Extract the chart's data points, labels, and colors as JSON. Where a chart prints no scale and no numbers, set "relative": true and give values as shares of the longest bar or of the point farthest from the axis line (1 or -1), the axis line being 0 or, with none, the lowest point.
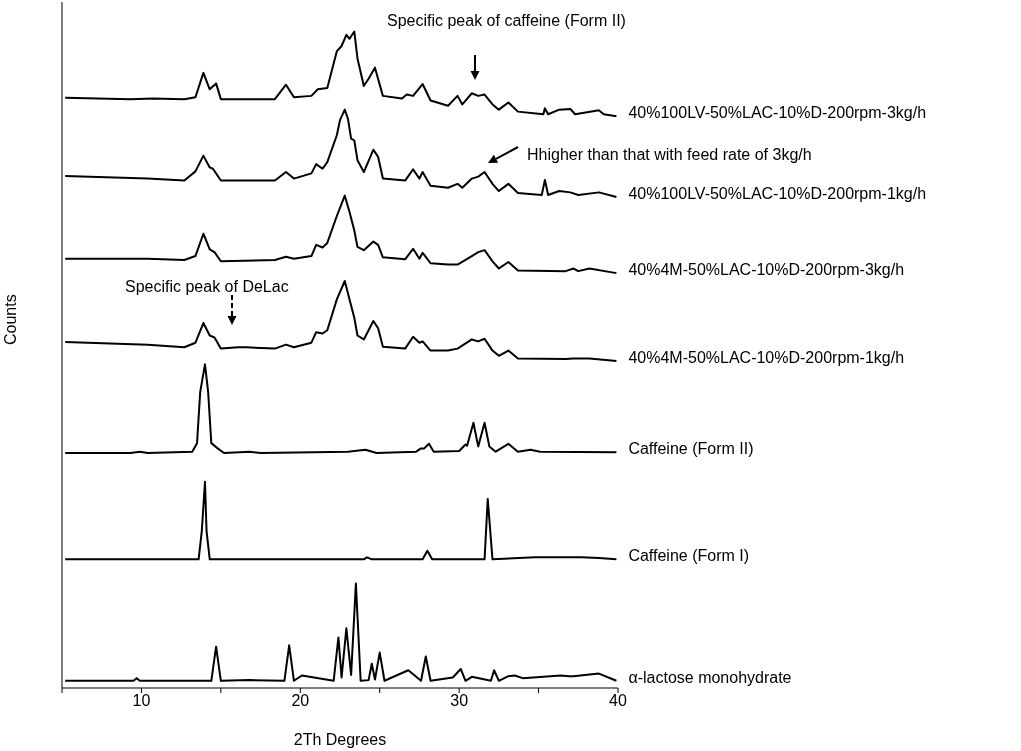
{
  "chart_data": {
    "type": "line",
    "relative": true,
    "xlabel": "2Th Degrees",
    "ylabel": "Counts",
    "xlim": [
      5,
      40
    ],
    "xticks": [
      {
        "value": 5,
        "label": null
      },
      10,
      {
        "value": 15,
        "label": null
      },
      20,
      {
        "value": 25,
        "label": null
      },
      30,
      {
        "value": 35,
        "label": null
      },
      40
    ],
    "annotations": [
      "Specific peak of caffeine (Form II)",
      "Hhigher than that with feed rate of 3kg/h",
      "Specific peak of DeLac"
    ],
    "series": [
      {
        "name": "40%100LV-50%LAC-10%D-200rpm-3kg/h",
        "color": "#000000",
        "x": [
          5.2,
          9.3,
          10.7,
          12.7,
          13.4,
          13.9,
          14.3,
          14.7,
          15.0,
          18.4,
          19.1,
          19.6,
          20.7,
          21.1,
          21.7,
          22.3,
          22.6,
          22.9,
          23.1,
          23.4,
          23.6,
          24.0,
          24.3,
          24.7,
          25.2,
          26.4,
          26.7,
          27.1,
          27.7,
          28.2,
          29.3,
          29.9,
          30.2,
          30.8,
          31.2,
          31.6,
          32.1,
          32.5,
          33.1,
          33.7,
          35.3,
          35.4,
          35.6,
          36.3,
          37.0,
          37.3,
          38.8,
          39.1,
          39.9
        ],
        "values": [
          0.899,
          0.897,
          0.898,
          0.897,
          0.9,
          0.937,
          0.912,
          0.921,
          0.897,
          0.897,
          0.919,
          0.9,
          0.902,
          0.912,
          0.914,
          0.97,
          0.978,
          0.995,
          0.989,
          1.0,
          0.959,
          0.917,
          0.928,
          0.945,
          0.902,
          0.898,
          0.904,
          0.902,
          0.92,
          0.895,
          0.887,
          0.902,
          0.889,
          0.906,
          0.902,
          0.904,
          0.889,
          0.881,
          0.892,
          0.878,
          0.874,
          0.883,
          0.874,
          0.881,
          0.882,
          0.874,
          0.88,
          0.874,
          0.871
        ]
      },
      {
        "name": "40%100LV-50%LAC-10%D-200rpm-1kg/h",
        "color": "#000000",
        "x": [
          5.2,
          10.4,
          12.7,
          13.4,
          13.9,
          14.3,
          14.5,
          15.0,
          18.4,
          19.1,
          19.6,
          20.7,
          21.0,
          21.4,
          21.7,
          22.3,
          22.5,
          22.8,
          23.0,
          23.2,
          23.4,
          23.6,
          24.0,
          24.6,
          24.9,
          25.2,
          26.6,
          27.1,
          27.5,
          27.7,
          28.2,
          29.3,
          29.9,
          30.2,
          30.8,
          31.2,
          31.6,
          32.1,
          32.5,
          33.1,
          33.7,
          35.2,
          35.4,
          35.6,
          36.3,
          37.0,
          37.5,
          38.8,
          39.9
        ],
        "values": [
          0.78,
          0.776,
          0.773,
          0.787,
          0.811,
          0.793,
          0.791,
          0.773,
          0.773,
          0.786,
          0.776,
          0.784,
          0.798,
          0.791,
          0.801,
          0.842,
          0.865,
          0.881,
          0.867,
          0.837,
          0.834,
          0.804,
          0.786,
          0.82,
          0.809,
          0.776,
          0.773,
          0.79,
          0.776,
          0.786,
          0.765,
          0.762,
          0.768,
          0.762,
          0.776,
          0.779,
          0.786,
          0.768,
          0.757,
          0.768,
          0.754,
          0.751,
          0.774,
          0.751,
          0.757,
          0.755,
          0.751,
          0.755,
          0.748
        ]
      },
      {
        "name": "40%4M-50%LAC-10%D-200rpm-3kg/h",
        "color": "#000000",
        "x": [
          5.2,
          10.4,
          12.7,
          13.4,
          13.9,
          14.3,
          14.6,
          15.0,
          18.4,
          19.1,
          19.6,
          20.7,
          21.0,
          21.4,
          21.7,
          22.3,
          22.8,
          23.1,
          23.4,
          23.6,
          24.0,
          24.6,
          24.9,
          25.2,
          26.6,
          27.1,
          27.5,
          27.7,
          28.2,
          29.3,
          29.9,
          30.8,
          31.2,
          31.6,
          32.1,
          32.5,
          33.1,
          33.7,
          36.7,
          37.2,
          37.5,
          38.2,
          39.9
        ],
        "values": [
          0.654,
          0.654,
          0.652,
          0.658,
          0.692,
          0.668,
          0.664,
          0.65,
          0.652,
          0.657,
          0.654,
          0.658,
          0.675,
          0.671,
          0.678,
          0.719,
          0.75,
          0.725,
          0.697,
          0.672,
          0.667,
          0.68,
          0.675,
          0.656,
          0.653,
          0.669,
          0.654,
          0.663,
          0.647,
          0.645,
          0.645,
          0.658,
          0.664,
          0.667,
          0.65,
          0.639,
          0.649,
          0.636,
          0.635,
          0.639,
          0.635,
          0.639,
          0.632
        ]
      },
      {
        "name": "40%4M-50%LAC-10%D-200rpm-1kg/h",
        "color": "#000000",
        "x": [
          5.2,
          10.4,
          12.7,
          13.4,
          13.9,
          14.3,
          14.6,
          15.0,
          16.1,
          16.6,
          18.4,
          19.1,
          19.6,
          20.7,
          21.0,
          21.4,
          21.7,
          22.3,
          22.8,
          23.1,
          23.4,
          23.6,
          24.0,
          24.6,
          24.9,
          25.2,
          26.6,
          27.1,
          27.5,
          27.7,
          28.2,
          29.3,
          29.9,
          30.8,
          31.2,
          31.6,
          32.1,
          32.5,
          33.1,
          33.7,
          36.7,
          37.2,
          38.2,
          39.9
        ],
        "values": [
          0.527,
          0.523,
          0.519,
          0.526,
          0.556,
          0.537,
          0.534,
          0.517,
          0.519,
          0.519,
          0.517,
          0.523,
          0.519,
          0.526,
          0.542,
          0.54,
          0.545,
          0.592,
          0.62,
          0.592,
          0.564,
          0.537,
          0.531,
          0.559,
          0.548,
          0.52,
          0.517,
          0.535,
          0.526,
          0.528,
          0.514,
          0.514,
          0.517,
          0.531,
          0.528,
          0.532,
          0.514,
          0.506,
          0.514,
          0.502,
          0.501,
          0.502,
          0.502,
          0.498
        ]
      },
      {
        "name": "Caffeine (Form II)",
        "color": "#000000",
        "x": [
          5.2,
          9.3,
          9.9,
          10.4,
          13.2,
          13.5,
          13.7,
          14.0,
          14.2,
          14.4,
          14.8,
          15.2,
          16.8,
          17.5,
          23.0,
          24.1,
          24.8,
          27.3,
          27.6,
          27.8,
          28.1,
          28.4,
          30.0,
          30.4,
          30.5,
          30.9,
          31.2,
          31.6,
          31.9,
          32.3,
          33.1,
          33.7,
          34.5,
          35.1,
          39.9
        ],
        "values": [
          0.358,
          0.358,
          0.36,
          0.358,
          0.36,
          0.373,
          0.451,
          0.493,
          0.451,
          0.373,
          0.365,
          0.358,
          0.36,
          0.358,
          0.36,
          0.363,
          0.358,
          0.36,
          0.365,
          0.365,
          0.372,
          0.36,
          0.361,
          0.371,
          0.369,
          0.404,
          0.368,
          0.404,
          0.368,
          0.36,
          0.372,
          0.36,
          0.363,
          0.36,
          0.359
        ]
      },
      {
        "name": "Caffeine (Form I)",
        "color": "#000000",
        "x": [
          5.2,
          13.6,
          13.8,
          14.0,
          14.1,
          14.3,
          24.0,
          24.2,
          24.5,
          27.7,
          28.0,
          28.3,
          31.6,
          31.8,
          32.1,
          34.8,
          37.7,
          38.8,
          39.9
        ],
        "values": [
          0.196,
          0.196,
          0.239,
          0.314,
          0.239,
          0.196,
          0.196,
          0.199,
          0.196,
          0.196,
          0.209,
          0.196,
          0.196,
          0.288,
          0.196,
          0.199,
          0.199,
          0.198,
          0.196
        ]
      },
      {
        "name": "α-lactose monohydrate",
        "color": "#000000",
        "x": [
          5.2,
          9.5,
          9.7,
          9.9,
          14.4,
          14.7,
          15.0,
          16.8,
          19.0,
          19.3,
          19.6,
          20.1,
          22.1,
          22.4,
          22.6,
          22.9,
          23.2,
          23.5,
          23.8,
          24.3,
          24.5,
          24.7,
          25.0,
          25.3,
          26.8,
          27.6,
          27.9,
          28.2,
          29.6,
          30.1,
          30.4,
          30.8,
          32.0,
          32.2,
          32.5,
          33.1,
          33.5,
          34.0,
          36.4,
          36.9,
          37.2,
          38.8,
          39.9
        ],
        "values": [
          0.011,
          0.011,
          0.015,
          0.011,
          0.011,
          0.063,
          0.011,
          0.012,
          0.011,
          0.065,
          0.011,
          0.019,
          0.011,
          0.077,
          0.016,
          0.091,
          0.02,
          0.159,
          0.011,
          0.012,
          0.037,
          0.013,
          0.054,
          0.011,
          0.027,
          0.011,
          0.048,
          0.011,
          0.016,
          0.029,
          0.011,
          0.017,
          0.011,
          0.027,
          0.011,
          0.018,
          0.019,
          0.015,
          0.019,
          0.018,
          0.018,
          0.022,
          0.011
        ]
      }
    ]
  }
}
